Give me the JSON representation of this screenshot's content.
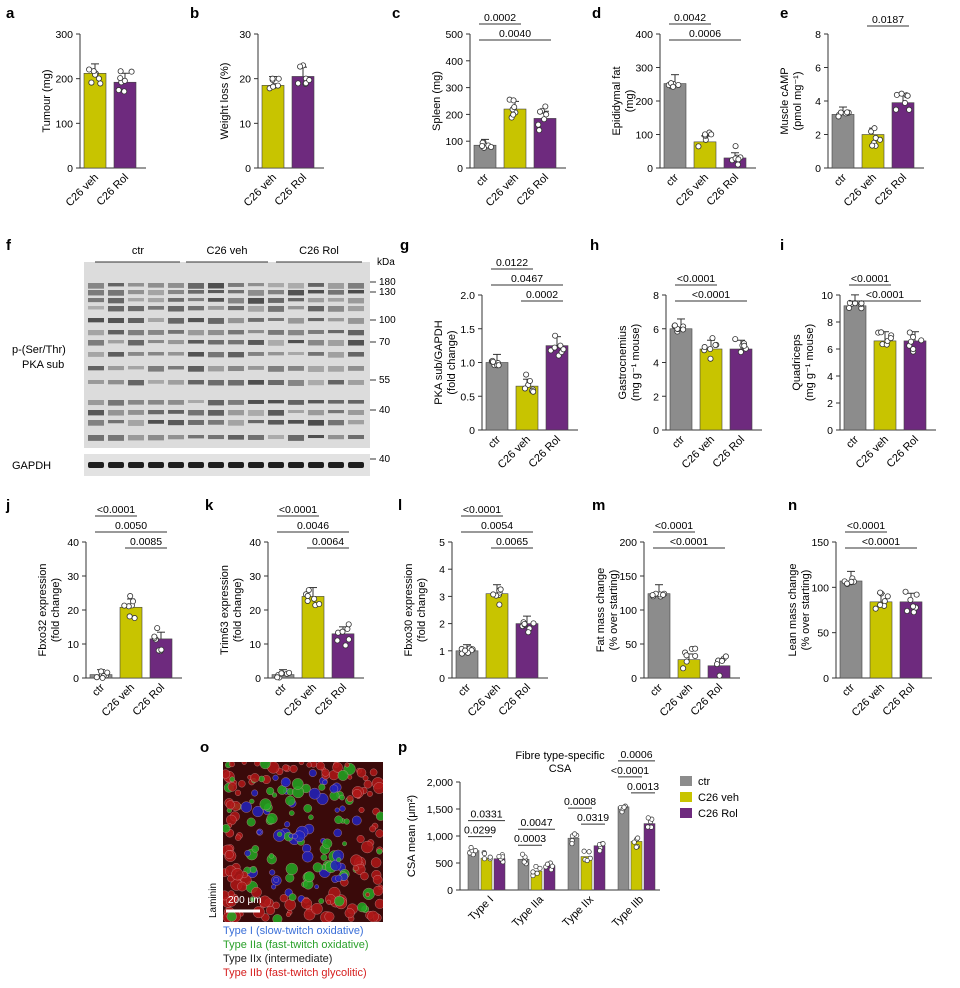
{
  "colors": {
    "ctr": "#8c8c8c",
    "veh": "#c8c400",
    "rol": "#6e2a7e",
    "axis": "#333333",
    "type_i": "#3a6fd8",
    "type_iia": "#2aa02a",
    "type_iix": "#222222",
    "type_iib": "#d62020"
  },
  "chart_data": [
    {
      "panel": "a",
      "type": "bar",
      "categories": [
        "C26 veh",
        "C26 Rol"
      ],
      "values": [
        212,
        192
      ],
      "ylabel": "Tumour (mg)",
      "ylim": [
        0,
        300
      ],
      "yticks": [
        0,
        100,
        200,
        300
      ],
      "sig": []
    },
    {
      "panel": "b",
      "type": "bar",
      "categories": [
        "C26 veh",
        "C26 Rol"
      ],
      "values": [
        18.5,
        20.5
      ],
      "ylabel": "Weight loss (%)",
      "ylim": [
        0,
        30
      ],
      "yticks": [
        0,
        10,
        20,
        30
      ],
      "sig": []
    },
    {
      "panel": "c",
      "type": "bar",
      "categories": [
        "ctr",
        "C26 veh",
        "C26 Rol"
      ],
      "values": [
        85,
        220,
        185
      ],
      "ylabel": "Spleen (mg)",
      "ylim": [
        0,
        500
      ],
      "yticks": [
        0,
        100,
        200,
        300,
        400,
        500
      ],
      "sig": [
        {
          "label": "0.0002",
          "from": 0,
          "to": 1
        },
        {
          "label": "0.0040",
          "from": 0,
          "to": 2
        }
      ]
    },
    {
      "panel": "d",
      "type": "bar",
      "categories": [
        "ctr",
        "C26 veh",
        "C26 Rol"
      ],
      "values": [
        252,
        78,
        30
      ],
      "ylabel": "Epididymal fat (mg)",
      "ylim": [
        0,
        400
      ],
      "yticks": [
        0,
        100,
        200,
        300,
        400
      ],
      "sig": [
        {
          "label": "0.0042",
          "from": 0,
          "to": 1
        },
        {
          "label": "0.0006",
          "from": 0,
          "to": 2
        }
      ]
    },
    {
      "panel": "e",
      "type": "bar",
      "categories": [
        "ctr",
        "C26 veh",
        "C26 Rol"
      ],
      "values": [
        3.2,
        2.0,
        3.9
      ],
      "ylabel": "Muscle cAMP (pmol mg⁻¹)",
      "ylim": [
        0,
        8
      ],
      "yticks": [
        0,
        2,
        4,
        6,
        8
      ],
      "sig": [
        {
          "label": "0.0187",
          "from": 1,
          "to": 2
        }
      ]
    },
    {
      "panel": "g",
      "type": "bar",
      "categories": [
        "ctr",
        "C26 veh",
        "C26 Rol"
      ],
      "values": [
        1.0,
        0.65,
        1.25
      ],
      "ylabel": "PKA sub/GAPDH (fold change)",
      "ylim": [
        0,
        2.0
      ],
      "yticks": [
        "0",
        "0.5",
        "1.0",
        "1.5",
        "2.0"
      ],
      "sig": [
        {
          "label": "0.0122",
          "from": 0,
          "to": 1
        },
        {
          "label": "0.0467",
          "from": 0,
          "to": 2
        },
        {
          "label": "0.0002",
          "from": 1,
          "to": 2
        }
      ]
    },
    {
      "panel": "h",
      "type": "bar",
      "categories": [
        "ctr",
        "C26 veh",
        "C26 Rol"
      ],
      "values": [
        6.0,
        4.8,
        4.8
      ],
      "ylabel": "Gastrocnemius (mg g⁻¹ mouse)",
      "ylim": [
        0,
        8
      ],
      "yticks": [
        0,
        2,
        4,
        6,
        8
      ],
      "sig": [
        {
          "label": "<0.0001",
          "from": 0,
          "to": 1
        },
        {
          "label": "<0.0001",
          "from": 0,
          "to": 2
        }
      ]
    },
    {
      "panel": "i",
      "type": "bar",
      "categories": [
        "ctr",
        "C26 veh",
        "C26 Rol"
      ],
      "values": [
        9.2,
        6.6,
        6.6
      ],
      "ylabel": "Quadriceps (mg g⁻¹ mouse)",
      "ylim": [
        0,
        10
      ],
      "yticks": [
        0,
        2,
        4,
        6,
        8,
        10
      ],
      "sig": [
        {
          "label": "<0.0001",
          "from": 0,
          "to": 1
        },
        {
          "label": "<0.0001",
          "from": 0,
          "to": 2
        }
      ]
    },
    {
      "panel": "j",
      "type": "bar",
      "categories": [
        "ctr",
        "C26 veh",
        "C26 Rol"
      ],
      "values": [
        1.0,
        20.8,
        11.5
      ],
      "ylabel": "Fbxo32 expression (fold change)",
      "ylim": [
        0,
        40
      ],
      "yticks": [
        0,
        10,
        20,
        30,
        40
      ],
      "sig": [
        {
          "label": "<0.0001",
          "from": 0,
          "to": 1
        },
        {
          "label": "0.0050",
          "from": 0,
          "to": 2
        },
        {
          "label": "0.0085",
          "from": 1,
          "to": 2
        }
      ]
    },
    {
      "panel": "k",
      "type": "bar",
      "categories": [
        "ctr",
        "C26 veh",
        "C26 Rol"
      ],
      "values": [
        1.0,
        24.0,
        13.0
      ],
      "ylabel": "Trim63 expression (fold change)",
      "ylim": [
        0,
        40
      ],
      "yticks": [
        0,
        10,
        20,
        30,
        40
      ],
      "sig": [
        {
          "label": "<0.0001",
          "from": 0,
          "to": 1
        },
        {
          "label": "0.0046",
          "from": 0,
          "to": 2
        },
        {
          "label": "0.0064",
          "from": 1,
          "to": 2
        }
      ]
    },
    {
      "panel": "l",
      "type": "bar",
      "categories": [
        "ctr",
        "C26 veh",
        "C26 Rol"
      ],
      "values": [
        1.0,
        3.1,
        2.0
      ],
      "ylabel": "Fbxo30 expression (fold change)",
      "ylim": [
        0,
        5
      ],
      "yticks": [
        0,
        1,
        2,
        3,
        4,
        5
      ],
      "sig": [
        {
          "label": "<0.0001",
          "from": 0,
          "to": 1
        },
        {
          "label": "0.0054",
          "from": 0,
          "to": 2
        },
        {
          "label": "0.0065",
          "from": 1,
          "to": 2
        }
      ]
    },
    {
      "panel": "m",
      "type": "bar",
      "categories": [
        "ctr",
        "C26 veh",
        "C26 Rol"
      ],
      "values": [
        124,
        27,
        18
      ],
      "ylabel": "Fat mass change (% over starting)",
      "ylim": [
        0,
        200
      ],
      "yticks": [
        0,
        50,
        100,
        150,
        200
      ],
      "sig": [
        {
          "label": "<0.0001",
          "from": 0,
          "to": 1
        },
        {
          "label": "<0.0001",
          "from": 0,
          "to": 2
        }
      ]
    },
    {
      "panel": "n",
      "type": "bar",
      "categories": [
        "ctr",
        "C26 veh",
        "C26 Rol"
      ],
      "values": [
        107,
        84,
        84
      ],
      "ylabel": "Lean mass change (% over starting)",
      "ylim": [
        0,
        150
      ],
      "yticks": [
        0,
        50,
        100,
        150
      ],
      "sig": [
        {
          "label": "<0.0001",
          "from": 0,
          "to": 1
        },
        {
          "label": "<0.0001",
          "from": 0,
          "to": 2
        }
      ]
    },
    {
      "panel": "p",
      "type": "bar",
      "title": "Fibre type-specific CSA",
      "categories": [
        "Type I",
        "Type IIa",
        "Type IIx",
        "Type IIb"
      ],
      "series": [
        {
          "name": "ctr",
          "values": [
            730,
            570,
            960,
            1540
          ]
        },
        {
          "name": "C26 veh",
          "values": [
            590,
            350,
            620,
            900
          ]
        },
        {
          "name": "C26 Rol",
          "values": [
            580,
            450,
            820,
            1230
          ]
        }
      ],
      "ylabel": "CSA mean (μm²)",
      "ylim": [
        0,
        2000
      ],
      "yticks": [
        "0",
        "500",
        "1,000",
        "1,500",
        "2,000"
      ],
      "sig": [
        {
          "label": "0.0299",
          "group": 0,
          "from": 0,
          "to": 1
        },
        {
          "label": "0.0331",
          "group": 0,
          "from": 0,
          "to": 2
        },
        {
          "label": "0.0003",
          "group": 1,
          "from": 0,
          "to": 1
        },
        {
          "label": "0.0047",
          "group": 1,
          "from": 0,
          "to": 2
        },
        {
          "label": "0.0319",
          "group": 2,
          "from": 1,
          "to": 2
        },
        {
          "label": "0.0008",
          "group": 2,
          "from": 0,
          "to": 1
        },
        {
          "label": "0.0013",
          "group": 3,
          "from": 1,
          "to": 2
        },
        {
          "label": "<0.0001",
          "group": 3,
          "from": 0,
          "to": 1
        },
        {
          "label": "0.0006",
          "group": 3,
          "from": 0,
          "to": 2
        }
      ]
    }
  ],
  "blot": {
    "groups": [
      "ctr",
      "C26 veh",
      "C26 Rol"
    ],
    "kda_label": "kDa",
    "markers": [
      "180",
      "130",
      "100",
      "70",
      "55",
      "40"
    ],
    "gapdh_marker": "40",
    "label_line1": "p-(Ser/Thr)",
    "label_line2": "PKA sub",
    "gapdh_label": "GAPDH"
  },
  "micrograph": {
    "scale_label": "200 μm",
    "side_label": "Laminin"
  },
  "fibre_legend": [
    "Type I (slow-twitch oxidative)",
    "Type IIa (fast-twitch oxidative)",
    "Type IIx (intermediate)",
    "Type IIb (fast-twitch glycolitic)"
  ],
  "panel_p_legend": [
    "ctr",
    "C26 veh",
    "C26 Rol"
  ]
}
